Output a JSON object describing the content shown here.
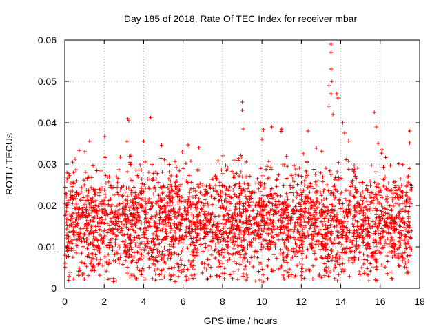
{
  "chart_data": {
    "type": "scatter",
    "title": "Day 185 of 2018, Rate Of TEC Index for receiver mbar",
    "xlabel": "GPS time / hours",
    "ylabel": "ROTI / TECUs",
    "xlim": [
      0,
      18
    ],
    "ylim": [
      0,
      0.06
    ],
    "xticks": [
      0,
      2,
      4,
      6,
      8,
      10,
      12,
      14,
      16,
      18
    ],
    "yticks": [
      0,
      0.01,
      0.02,
      0.03,
      0.04,
      0.05,
      0.06
    ],
    "ytick_labels": [
      "0",
      "0.01",
      "0.02",
      "0.03",
      "0.04",
      "0.05",
      "0.06"
    ],
    "grid": true,
    "marker": "+",
    "series": [
      {
        "name": "ROTI",
        "color": "#ff0000",
        "data_extent": {
          "x_start": 0.0,
          "x_end": 17.6
        },
        "typical_band": [
          0.005,
          0.025
        ],
        "notable_points": [
          [
            3.2,
            0.041
          ],
          [
            3.25,
            0.0405
          ],
          [
            3.15,
            0.0355
          ],
          [
            4.0,
            0.0355
          ],
          [
            6.8,
            0.034
          ],
          [
            9.0,
            0.045
          ],
          [
            9.0,
            0.043
          ],
          [
            9.05,
            0.0385
          ],
          [
            10.0,
            0.036
          ],
          [
            10.5,
            0.039
          ],
          [
            11.0,
            0.0385
          ],
          [
            13.5,
            0.059
          ],
          [
            13.5,
            0.057
          ],
          [
            13.5,
            0.053
          ],
          [
            13.55,
            0.05
          ],
          [
            13.4,
            0.049
          ],
          [
            13.5,
            0.047
          ],
          [
            13.8,
            0.047
          ],
          [
            13.85,
            0.046
          ],
          [
            13.4,
            0.044
          ],
          [
            13.6,
            0.042
          ],
          [
            14.1,
            0.04
          ],
          [
            15.7,
            0.0425
          ],
          [
            15.8,
            0.039
          ],
          [
            15.9,
            0.035
          ],
          [
            17.5,
            0.038
          ],
          [
            4.6,
            0.002
          ],
          [
            9.2,
            0.002
          ],
          [
            12.9,
            0.003
          ],
          [
            17.4,
            0.004
          ]
        ]
      }
    ]
  }
}
